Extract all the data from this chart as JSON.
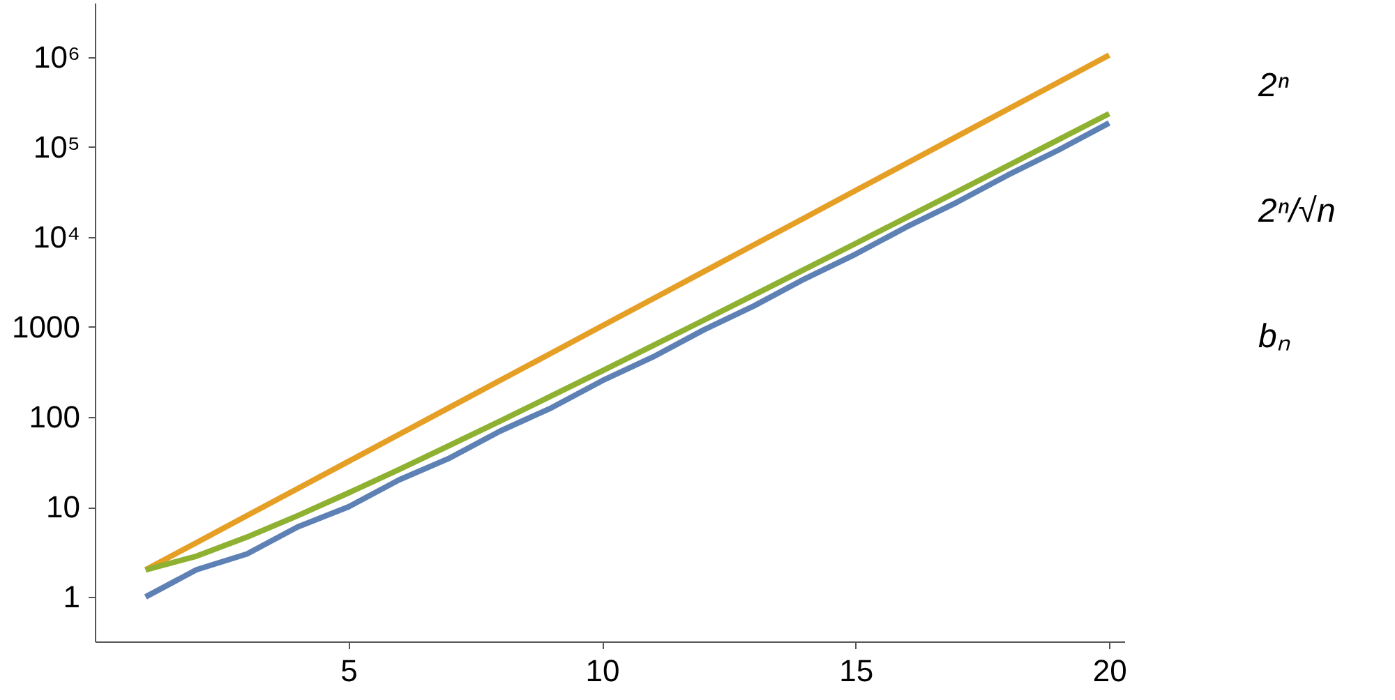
{
  "chart_data": {
    "type": "line",
    "log": "y",
    "grid": false,
    "marker": "none",
    "line_style": "solid",
    "x": [
      1,
      2,
      3,
      4,
      5,
      6,
      7,
      8,
      9,
      10,
      11,
      12,
      13,
      14,
      15,
      16,
      17,
      18,
      19,
      20
    ],
    "xlim": [
      0,
      20.3
    ],
    "xticks": [
      5,
      10,
      15,
      20
    ],
    "ylim": [
      0.32,
      4000000
    ],
    "yticks": [
      1,
      10,
      100,
      {
        "value": 1000,
        "label": "1000"
      },
      {
        "value": 10000,
        "label": "10⁴"
      },
      {
        "value": 100000,
        "label": "10⁵"
      },
      {
        "value": 1000000,
        "label": "10⁶"
      }
    ],
    "series": [
      {
        "name": "2ⁿ",
        "color": "#e69f25",
        "values": [
          2,
          4,
          8,
          16,
          32,
          64,
          128,
          256,
          512,
          1024,
          2048,
          4096,
          8192,
          16384,
          32768,
          65536,
          131072,
          262144,
          524288,
          1048576
        ]
      },
      {
        "name": "2ⁿ/√n",
        "color": "#8fb131",
        "values": [
          2,
          2.83,
          4.62,
          8,
          14.3,
          26.1,
          48.4,
          90.5,
          171,
          324,
          618,
          1182,
          2272,
          4379,
          8461,
          16384,
          31790,
          61788,
          120281,
          234468
        ]
      },
      {
        "name": "bₙ",
        "color": "#5e81b5",
        "values": [
          1,
          2,
          3,
          6,
          10,
          20,
          35,
          70,
          126,
          252,
          462,
          924,
          1716,
          3432,
          6435,
          12870,
          24310,
          48620,
          92378,
          184756
        ]
      }
    ]
  }
}
